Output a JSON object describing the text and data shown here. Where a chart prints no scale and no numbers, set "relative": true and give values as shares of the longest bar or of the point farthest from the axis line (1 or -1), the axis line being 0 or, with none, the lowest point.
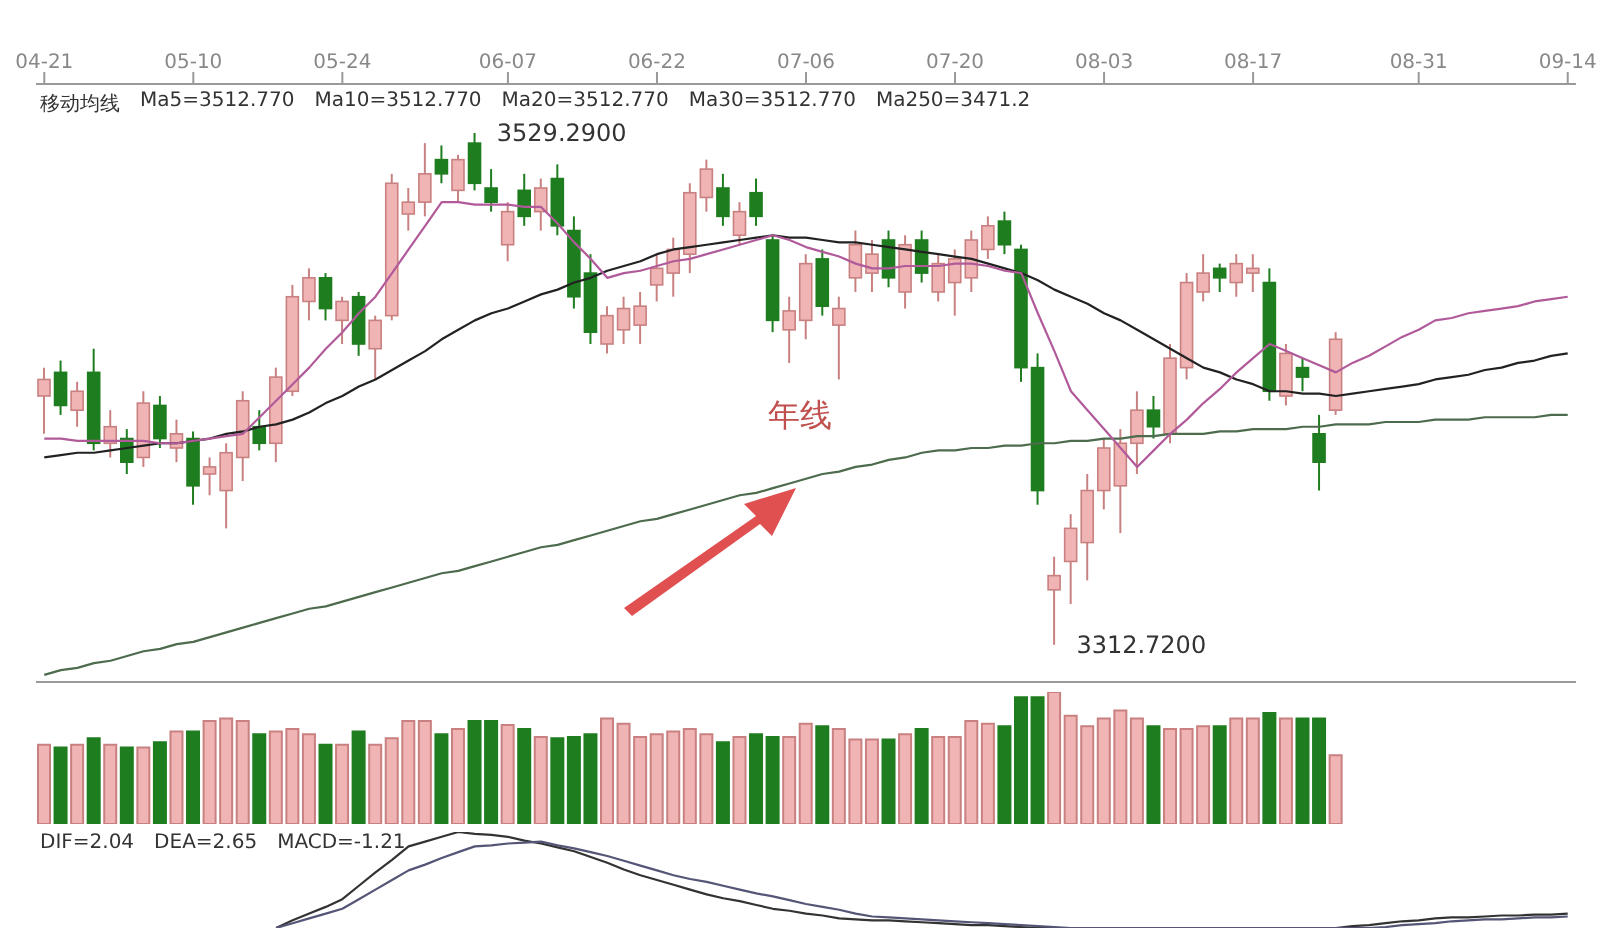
{
  "chart_data": [
    {
      "type": "candlestick",
      "tick_labels": "x",
      "categories": [
        "04-21",
        null,
        null,
        null,
        null,
        null,
        null,
        null,
        null,
        "05-10",
        null,
        null,
        null,
        null,
        null,
        null,
        null,
        null,
        "05-24",
        null,
        null,
        null,
        null,
        null,
        null,
        null,
        null,
        null,
        "06-07",
        null,
        null,
        null,
        null,
        null,
        null,
        null,
        null,
        "06-22",
        null,
        null,
        null,
        null,
        null,
        null,
        null,
        null,
        "07-06",
        null,
        null,
        null,
        null,
        null,
        null,
        null,
        null,
        "07-20",
        null,
        null,
        null,
        null,
        null,
        null,
        null,
        null,
        "08-03",
        null,
        null,
        null,
        null,
        null,
        null,
        null,
        null,
        "08-17",
        null,
        null,
        null,
        null,
        null,
        null,
        null,
        null,
        null,
        "08-31",
        null,
        null,
        null,
        null,
        null,
        null,
        null,
        null,
        "09-14"
      ],
      "ohlc": [
        [
          3418,
          3430,
          3402,
          3425
        ],
        [
          3428,
          3433,
          3410,
          3414
        ],
        [
          3412,
          3424,
          3405,
          3420
        ],
        [
          3428,
          3438,
          3395,
          3398
        ],
        [
          3398,
          3412,
          3392,
          3405
        ],
        [
          3400,
          3404,
          3385,
          3390
        ],
        [
          3392,
          3420,
          3388,
          3415
        ],
        [
          3414,
          3418,
          3396,
          3400
        ],
        [
          3396,
          3408,
          3390,
          3402
        ],
        [
          3400,
          3403,
          3372,
          3380
        ],
        [
          3385,
          3392,
          3376,
          3388
        ],
        [
          3378,
          3398,
          3362,
          3394
        ],
        [
          3392,
          3420,
          3382,
          3416
        ],
        [
          3405,
          3412,
          3395,
          3398
        ],
        [
          3398,
          3430,
          3390,
          3426
        ],
        [
          3420,
          3465,
          3418,
          3460
        ],
        [
          3458,
          3472,
          3450,
          3468
        ],
        [
          3468,
          3470,
          3450,
          3455
        ],
        [
          3450,
          3460,
          3440,
          3458
        ],
        [
          3460,
          3462,
          3435,
          3440
        ],
        [
          3438,
          3452,
          3425,
          3450
        ],
        [
          3452,
          3512,
          3450,
          3508
        ],
        [
          3495,
          3506,
          3488,
          3500
        ],
        [
          3500,
          3525,
          3494,
          3512
        ],
        [
          3518,
          3524,
          3508,
          3512
        ],
        [
          3505,
          3520,
          3500,
          3518
        ],
        [
          3525,
          3529.29,
          3505,
          3508
        ],
        [
          3506,
          3514,
          3496,
          3500
        ],
        [
          3482,
          3500,
          3475,
          3496
        ],
        [
          3505,
          3512,
          3490,
          3494
        ],
        [
          3496,
          3510,
          3488,
          3506
        ],
        [
          3510,
          3516,
          3486,
          3490
        ],
        [
          3488,
          3494,
          3455,
          3460
        ],
        [
          3470,
          3478,
          3440,
          3445
        ],
        [
          3440,
          3456,
          3436,
          3452
        ],
        [
          3446,
          3460,
          3440,
          3455
        ],
        [
          3448,
          3462,
          3440,
          3456
        ],
        [
          3465,
          3478,
          3458,
          3472
        ],
        [
          3470,
          3485,
          3460,
          3480
        ],
        [
          3478,
          3508,
          3470,
          3504
        ],
        [
          3502,
          3518,
          3496,
          3514
        ],
        [
          3506,
          3512,
          3490,
          3494
        ],
        [
          3486,
          3500,
          3482,
          3496
        ],
        [
          3504,
          3510,
          3490,
          3494
        ],
        [
          3484,
          3486,
          3445,
          3450
        ],
        [
          3446,
          3460,
          3432,
          3454
        ],
        [
          3450,
          3478,
          3442,
          3474
        ],
        [
          3476,
          3480,
          3452,
          3456
        ],
        [
          3448,
          3460,
          3425,
          3455
        ],
        [
          3468,
          3488,
          3462,
          3482
        ],
        [
          3470,
          3484,
          3462,
          3478
        ],
        [
          3484,
          3488,
          3464,
          3468
        ],
        [
          3462,
          3486,
          3455,
          3482
        ],
        [
          3484,
          3488,
          3466,
          3470
        ],
        [
          3462,
          3478,
          3458,
          3474
        ],
        [
          3466,
          3480,
          3452,
          3476
        ],
        [
          3468,
          3488,
          3462,
          3484
        ],
        [
          3480,
          3494,
          3476,
          3490
        ],
        [
          3492,
          3496,
          3478,
          3482
        ],
        [
          3480,
          3482,
          3424,
          3430
        ],
        [
          3430,
          3436,
          3372,
          3378
        ],
        [
          3336,
          3350,
          3312.72,
          3342
        ],
        [
          3348,
          3368,
          3330,
          3362
        ],
        [
          3356,
          3385,
          3340,
          3378
        ],
        [
          3378,
          3400,
          3370,
          3396
        ],
        [
          3380,
          3404,
          3360,
          3398
        ],
        [
          3398,
          3420,
          3385,
          3412
        ],
        [
          3412,
          3418,
          3400,
          3405
        ],
        [
          3402,
          3440,
          3398,
          3434
        ],
        [
          3430,
          3470,
          3425,
          3466
        ],
        [
          3462,
          3478,
          3458,
          3470
        ],
        [
          3472,
          3474,
          3462,
          3468
        ],
        [
          3466,
          3478,
          3460,
          3474
        ],
        [
          3470,
          3478,
          3462,
          3472
        ],
        [
          3466,
          3472,
          3416,
          3420
        ],
        [
          3418,
          3440,
          3414,
          3436
        ],
        [
          3430,
          3434,
          3420,
          3426
        ],
        [
          3402,
          3410,
          3378,
          3390
        ],
        [
          3412,
          3445,
          3410,
          3442
        ],
        null,
        null,
        null,
        null,
        null,
        null,
        null,
        null,
        null,
        null,
        null,
        null,
        null,
        null
      ],
      "colors": [
        "#f0b4b4",
        "#1e7d1e",
        "#f0b4b4",
        "#1e7d1e",
        "#f0b4b4",
        "#1e7d1e",
        "#f0b4b4",
        "#1e7d1e",
        "#f0b4b4",
        "#1e7d1e",
        "#f0b4b4",
        "#f0b4b4",
        "#f0b4b4",
        "#1e7d1e",
        "#f0b4b4",
        "#f0b4b4",
        "#f0b4b4",
        "#1e7d1e",
        "#f0b4b4",
        "#1e7d1e",
        "#f0b4b4",
        "#f0b4b4",
        "#f0b4b4",
        "#f0b4b4",
        "#1e7d1e",
        "#f0b4b4",
        "#1e7d1e",
        "#1e7d1e",
        "#f0b4b4",
        "#1e7d1e",
        "#f0b4b4",
        "#1e7d1e",
        "#1e7d1e",
        "#1e7d1e",
        "#f0b4b4",
        "#f0b4b4",
        "#f0b4b4",
        "#f0b4b4",
        "#f0b4b4",
        "#f0b4b4",
        "#f0b4b4",
        "#1e7d1e",
        "#f0b4b4",
        "#1e7d1e",
        "#1e7d1e",
        "#f0b4b4",
        "#f0b4b4",
        "#1e7d1e",
        "#f0b4b4",
        "#f0b4b4",
        "#f0b4b4",
        "#1e7d1e",
        "#f0b4b4",
        "#1e7d1e",
        "#f0b4b4",
        "#f0b4b4",
        "#f0b4b4",
        "#f0b4b4",
        "#1e7d1e",
        "#1e7d1e",
        "#1e7d1e",
        "#f0b4b4",
        "#f0b4b4",
        "#f0b4b4",
        "#f0b4b4",
        "#f0b4b4",
        "#f0b4b4",
        "#1e7d1e",
        "#f0b4b4",
        "#f0b4b4",
        "#f0b4b4",
        "#1e7d1e",
        "#f0b4b4",
        "#f0b4b4",
        "#1e7d1e",
        "#f0b4b4",
        "#1e7d1e",
        "#1e7d1e",
        "#f0b4b4",
        null,
        null,
        null,
        null,
        null,
        null,
        null,
        null,
        null,
        null,
        null,
        null,
        null,
        null
      ],
      "ylim": [
        3297,
        3550
      ],
      "series": [
        {
          "type": "line",
          "color": "#4d6b4d",
          "values": [
            3300,
            3302,
            3303,
            3305,
            3306,
            3308,
            3310,
            3311,
            3313,
            3314,
            3316,
            3318,
            3320,
            3322,
            3324,
            3326,
            3328,
            3329,
            3331,
            3333,
            3335,
            3337,
            3339,
            3341,
            3343,
            3344,
            3346,
            3348,
            3350,
            3352,
            3354,
            3355,
            3357,
            3359,
            3361,
            3363,
            3365,
            3366,
            3368,
            3370,
            3372,
            3374,
            3376,
            3377,
            3379,
            3381,
            3383,
            3385,
            3386,
            3388,
            3389,
            3391,
            3392,
            3394,
            3395,
            3395,
            3396,
            3396,
            3397,
            3397,
            3398,
            3398,
            3399,
            3399,
            3400,
            3400,
            3401,
            3401,
            3402,
            3402,
            3402,
            3403,
            3403,
            3404,
            3404,
            3404,
            3405,
            3405,
            3406,
            3406,
            3406,
            3407,
            3407,
            3407,
            3408,
            3408,
            3408,
            3409,
            3409,
            3409,
            3409,
            3410,
            3410
          ]
        },
        {
          "type": "line",
          "color": "#222222",
          "values": [
            3392,
            3393,
            3394,
            3394,
            3395,
            3396,
            3397,
            3398,
            3398,
            3399,
            3400,
            3402,
            3403,
            3405,
            3406,
            3408,
            3411,
            3415,
            3418,
            3422,
            3425,
            3429,
            3433,
            3437,
            3442,
            3446,
            3450,
            3453,
            3455,
            3458,
            3461,
            3463,
            3466,
            3468,
            3471,
            3473,
            3475,
            3478,
            3480,
            3481,
            3482,
            3483,
            3484,
            3485,
            3486,
            3485,
            3485,
            3484,
            3483,
            3483,
            3482,
            3481,
            3480,
            3479,
            3478,
            3477,
            3476,
            3474,
            3472,
            3470,
            3467,
            3463,
            3460,
            3457,
            3453,
            3450,
            3446,
            3442,
            3438,
            3434,
            3430,
            3428,
            3425,
            3423,
            3420,
            3420,
            3419,
            3419,
            3418,
            3419,
            3420,
            3421,
            3422,
            3423,
            3425,
            3426,
            3427,
            3429,
            3430,
            3432,
            3433,
            3435,
            3436
          ]
        },
        {
          "type": "line",
          "color": "#b05a9a",
          "values": [
            3400,
            3400,
            3399,
            3399,
            3399,
            3399,
            3399,
            3398,
            3398,
            3399,
            3400,
            3401,
            3402,
            3409,
            3416,
            3423,
            3430,
            3438,
            3445,
            3453,
            3460,
            3470,
            3480,
            3490,
            3500,
            3500,
            3499,
            3499,
            3499,
            3498,
            3498,
            3491,
            3483,
            3476,
            3468,
            3470,
            3471,
            3473,
            3475,
            3476,
            3478,
            3480,
            3482,
            3484,
            3486,
            3484,
            3481,
            3479,
            3477,
            3474,
            3472,
            3472,
            3473,
            3473,
            3473,
            3474,
            3474,
            3473,
            3471,
            3470,
            3453,
            3437,
            3420,
            3412,
            3404,
            3396,
            3388,
            3395,
            3402,
            3408,
            3415,
            3421,
            3428,
            3434,
            3440,
            3437,
            3434,
            3431,
            3428,
            3432,
            3435,
            3439,
            3443,
            3446,
            3450,
            3451,
            3453,
            3454,
            3455,
            3456,
            3458,
            3459,
            3460
          ]
        }
      ],
      "annotations": [
        "年线",
        "移动均线",
        "Ma5=3512.770",
        "Ma10=3512.770",
        "Ma20=3512.770",
        "Ma30=3512.770",
        "Ma250=3471.2",
        "3529.2900",
        "3312.7200"
      ]
    },
    {
      "type": "bar",
      "relative": true,
      "tick_labels": false,
      "categories": [
        null,
        null,
        null,
        null,
        null,
        null,
        null,
        null,
        null,
        null,
        null,
        null,
        null,
        null,
        null,
        null,
        null,
        null,
        null,
        null,
        null,
        null,
        null,
        null,
        null,
        null,
        null,
        null,
        null,
        null,
        null,
        null,
        null,
        null,
        null,
        null,
        null,
        null,
        null,
        null,
        null,
        null,
        null,
        null,
        null,
        null,
        null,
        null,
        null,
        null,
        null,
        null,
        null,
        null,
        null,
        null,
        null,
        null,
        null,
        null,
        null,
        null,
        null,
        null,
        null,
        null,
        null,
        null,
        null,
        null,
        null,
        null,
        null,
        null,
        null,
        null,
        null,
        null,
        null,
        null,
        null,
        null,
        null,
        null,
        null,
        null,
        null,
        null,
        null,
        null,
        null,
        null,
        null
      ],
      "values": [
        0.6,
        0.58,
        0.6,
        0.65,
        0.6,
        0.58,
        0.58,
        0.62,
        0.7,
        0.7,
        0.78,
        0.8,
        0.78,
        0.68,
        0.7,
        0.72,
        0.68,
        0.6,
        0.6,
        0.7,
        0.6,
        0.65,
        0.78,
        0.78,
        0.68,
        0.72,
        0.78,
        0.78,
        0.75,
        0.72,
        0.66,
        0.65,
        0.66,
        0.68,
        0.8,
        0.76,
        0.66,
        0.68,
        0.7,
        0.72,
        0.68,
        0.62,
        0.66,
        0.68,
        0.66,
        0.66,
        0.76,
        0.74,
        0.72,
        0.64,
        0.64,
        0.64,
        0.68,
        0.72,
        0.66,
        0.66,
        0.78,
        0.76,
        0.74,
        0.96,
        0.96,
        1.0,
        0.82,
        0.74,
        0.8,
        0.86,
        0.8,
        0.74,
        0.72,
        0.72,
        0.74,
        0.74,
        0.8,
        0.8,
        0.84,
        0.8,
        0.8,
        0.8,
        0.52,
        null,
        null,
        null,
        null,
        null,
        null,
        null,
        null,
        null,
        null,
        null,
        null,
        null,
        null
      ],
      "colors": [
        "#f0b4b4",
        "#1e7d1e",
        "#f0b4b4",
        "#1e7d1e",
        "#f0b4b4",
        "#1e7d1e",
        "#f0b4b4",
        "#1e7d1e",
        "#f0b4b4",
        "#1e7d1e",
        "#f0b4b4",
        "#f0b4b4",
        "#f0b4b4",
        "#1e7d1e",
        "#f0b4b4",
        "#f0b4b4",
        "#f0b4b4",
        "#1e7d1e",
        "#f0b4b4",
        "#1e7d1e",
        "#f0b4b4",
        "#f0b4b4",
        "#f0b4b4",
        "#f0b4b4",
        "#1e7d1e",
        "#f0b4b4",
        "#1e7d1e",
        "#1e7d1e",
        "#f0b4b4",
        "#1e7d1e",
        "#f0b4b4",
        "#1e7d1e",
        "#1e7d1e",
        "#1e7d1e",
        "#f0b4b4",
        "#f0b4b4",
        "#f0b4b4",
        "#f0b4b4",
        "#f0b4b4",
        "#f0b4b4",
        "#f0b4b4",
        "#1e7d1e",
        "#f0b4b4",
        "#1e7d1e",
        "#1e7d1e",
        "#f0b4b4",
        "#f0b4b4",
        "#1e7d1e",
        "#f0b4b4",
        "#f0b4b4",
        "#f0b4b4",
        "#1e7d1e",
        "#f0b4b4",
        "#1e7d1e",
        "#f0b4b4",
        "#f0b4b4",
        "#f0b4b4",
        "#f0b4b4",
        "#1e7d1e",
        "#1e7d1e",
        "#1e7d1e",
        "#f0b4b4",
        "#f0b4b4",
        "#f0b4b4",
        "#f0b4b4",
        "#f0b4b4",
        "#f0b4b4",
        "#1e7d1e",
        "#f0b4b4",
        "#f0b4b4",
        "#f0b4b4",
        "#1e7d1e",
        "#f0b4b4",
        "#f0b4b4",
        "#1e7d1e",
        "#f0b4b4",
        "#1e7d1e",
        "#1e7d1e",
        "#f0b4b4",
        null,
        null,
        null,
        null,
        null,
        null,
        null,
        null,
        null,
        null,
        null,
        null,
        null,
        null
      ]
    },
    {
      "type": "line",
      "relative": true,
      "tick_labels": false,
      "categories": [
        null,
        null,
        null,
        null,
        null,
        null,
        null,
        null,
        null,
        null,
        null,
        null,
        null,
        null,
        null,
        null,
        null,
        null,
        null,
        null,
        null,
        null,
        null,
        null,
        null,
        null,
        null,
        null,
        null,
        null,
        null,
        null,
        null,
        null,
        null,
        null,
        null,
        null,
        null,
        null,
        null,
        null,
        null,
        null,
        null,
        null,
        null,
        null,
        null,
        null,
        null,
        null,
        null,
        null,
        null,
        null,
        null,
        null,
        null,
        null,
        null,
        null,
        null,
        null,
        null,
        null,
        null,
        null,
        null,
        null,
        null,
        null,
        null,
        null,
        null,
        null,
        null,
        null,
        null,
        null,
        null,
        null,
        null,
        null,
        null,
        null,
        null,
        null,
        null,
        null,
        null,
        null,
        null
      ],
      "series": [
        {
          "color": "#333333",
          "values": [
            null,
            null,
            null,
            null,
            null,
            null,
            null,
            null,
            null,
            null,
            null,
            null,
            null,
            null,
            0,
            0.08,
            0.15,
            0.22,
            0.3,
            0.44,
            0.58,
            0.71,
            0.85,
            0.9,
            0.95,
            1,
            0.98,
            0.97,
            0.95,
            0.91,
            0.88,
            0.84,
            0.8,
            0.74,
            0.68,
            0.61,
            0.55,
            0.5,
            0.45,
            0.4,
            0.35,
            0.31,
            0.28,
            0.24,
            0.2,
            0.18,
            0.15,
            0.13,
            0.1,
            0.09,
            0.08,
            0.08,
            0.07,
            0.06,
            0.05,
            0.04,
            0.03,
            0.03,
            0.02,
            0.01,
            0,
            0,
            0,
            0,
            0,
            0,
            0,
            0,
            0,
            0,
            0,
            0,
            0,
            0,
            0,
            0,
            0,
            0,
            0,
            0.02,
            0.03,
            0.05,
            0.07,
            0.08,
            0.1,
            0.11,
            0.11,
            0.12,
            0.13,
            0.13,
            0.14,
            0.14,
            0.15
          ]
        },
        {
          "color": "#555577",
          "values": [
            null,
            null,
            null,
            null,
            null,
            null,
            null,
            null,
            null,
            null,
            null,
            null,
            null,
            null,
            0,
            0.05,
            0.1,
            0.15,
            0.2,
            0.3,
            0.4,
            0.5,
            0.6,
            0.66,
            0.73,
            0.79,
            0.85,
            0.86,
            0.88,
            0.89,
            0.9,
            0.86,
            0.83,
            0.79,
            0.75,
            0.7,
            0.65,
            0.6,
            0.55,
            0.51,
            0.48,
            0.44,
            0.4,
            0.36,
            0.33,
            0.29,
            0.25,
            0.22,
            0.19,
            0.15,
            0.12,
            0.11,
            0.1,
            0.09,
            0.08,
            0.07,
            0.06,
            0.05,
            0.04,
            0.03,
            0.02,
            0.01,
            0,
            0,
            0,
            0,
            0,
            0,
            0,
            0,
            0,
            0,
            0,
            0,
            0,
            0,
            0,
            0,
            0,
            0,
            0,
            0.01,
            0.03,
            0.04,
            0.05,
            0.07,
            0.08,
            0.09,
            0.09,
            0.1,
            0.11,
            0.11,
            0.12
          ]
        }
      ],
      "annotations": [
        "DIF=2.04",
        "DEA=2.65",
        "MACD=-1.21"
      ]
    }
  ]
}
